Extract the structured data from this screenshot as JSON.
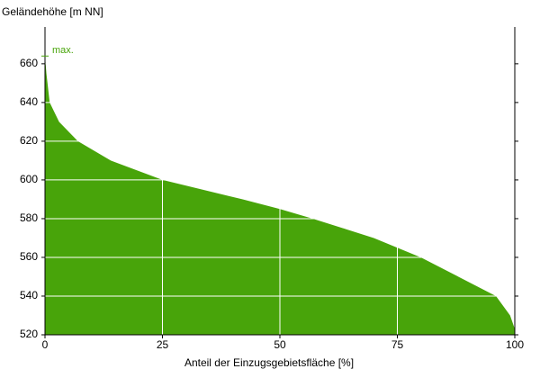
{
  "chart_data": {
    "type": "area",
    "y_label": "Geländehöhe [m NN]",
    "x_label": "Anteil der Einzugsgebietsfläche [%]",
    "x": [
      0,
      0.3,
      1,
      3,
      7,
      14,
      25,
      42,
      50,
      57,
      70,
      80,
      88,
      96,
      99,
      100
    ],
    "values": [
      664,
      655,
      640,
      630,
      620,
      610,
      600,
      590,
      585,
      580,
      570,
      560,
      550,
      540,
      530,
      523
    ],
    "color": "#48a40a",
    "annotation": {
      "text": "max.",
      "value": 664
    },
    "xlim": [
      0,
      100
    ],
    "xticks": [
      0,
      25,
      50,
      75,
      100
    ],
    "ylim": [
      520,
      679
    ],
    "yticks": [
      520,
      540,
      560,
      580,
      600,
      620,
      640,
      660
    ],
    "grid": true
  }
}
